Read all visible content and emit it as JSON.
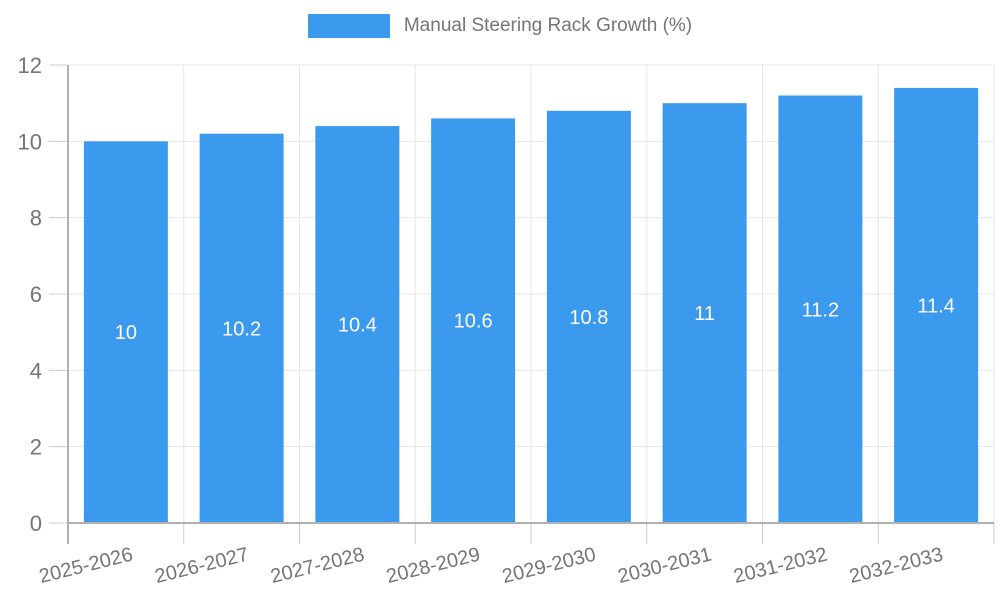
{
  "legend": {
    "label": "Manual Steering Rack Growth (%)"
  },
  "chart_data": {
    "type": "bar",
    "title": "Manual Steering Rack Growth (%)",
    "categories": [
      "2025-2026",
      "2026-2027",
      "2027-2028",
      "2028-2029",
      "2029-2030",
      "2030-2031",
      "2031-2032",
      "2032-2033"
    ],
    "values": [
      10,
      10.2,
      10.4,
      10.6,
      10.8,
      11,
      11.2,
      11.4
    ],
    "bar_labels": [
      "10",
      "10.2",
      "10.4",
      "10.6",
      "10.8",
      "11",
      "11.2",
      "11.4"
    ],
    "xlabel": "",
    "ylabel": "",
    "ylim": [
      0,
      12
    ],
    "y_ticks": [
      0,
      2,
      4,
      6,
      8,
      10,
      12
    ],
    "grid": true,
    "legend_position": "top-center",
    "colors": {
      "bar": "#3b99ee",
      "grid": "#e6e6e6",
      "axis": "#b0b0b0",
      "tick": "#cccccc",
      "text": "#757575",
      "bar_label": "#ffffff"
    }
  }
}
